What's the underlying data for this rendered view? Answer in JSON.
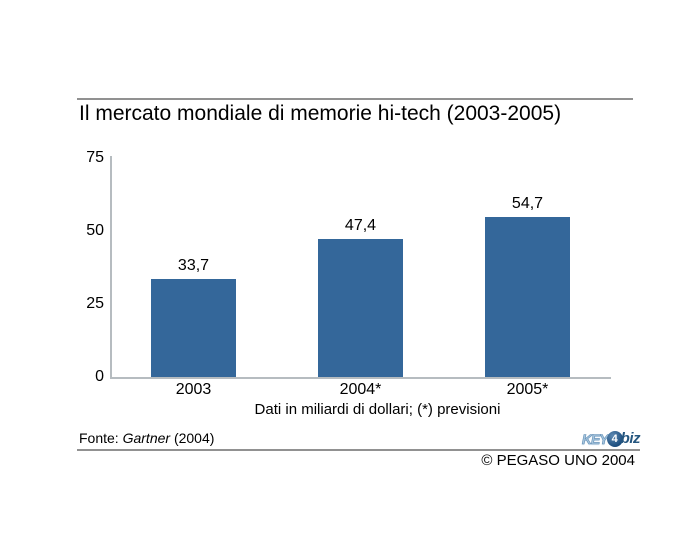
{
  "chart_data": {
    "type": "bar",
    "title": "Il mercato mondiale di memorie hi-tech (2003-2005)",
    "categories": [
      "2003",
      "2004*",
      "2005*"
    ],
    "values": [
      33.7,
      47.4,
      54.7
    ],
    "value_labels": [
      "33,7",
      "47,4",
      "54,7"
    ],
    "ylim": [
      0,
      75
    ],
    "yticks": [
      0,
      25,
      50,
      75
    ],
    "ytick_labels": [
      "0",
      "25",
      "50",
      "75"
    ],
    "grid": false,
    "legend": "none",
    "caption": "Dati in miliardi di dollari; (*) previsioni",
    "bar_color": "#34679A",
    "axis_color": "#b6bcc0"
  },
  "footer": {
    "fonte_prefix": "Fonte: ",
    "fonte_source": "Gartner",
    "fonte_suffix": " (2004)",
    "copyright": "© PEGASO UNO 2004"
  },
  "logo": {
    "key": "KEY",
    "four": "4",
    "biz": "biz",
    "light_blue": "#a7c6de",
    "dark_blue": "#25567f"
  },
  "colors": {
    "rule": "#919191",
    "background": "#ffffff"
  }
}
